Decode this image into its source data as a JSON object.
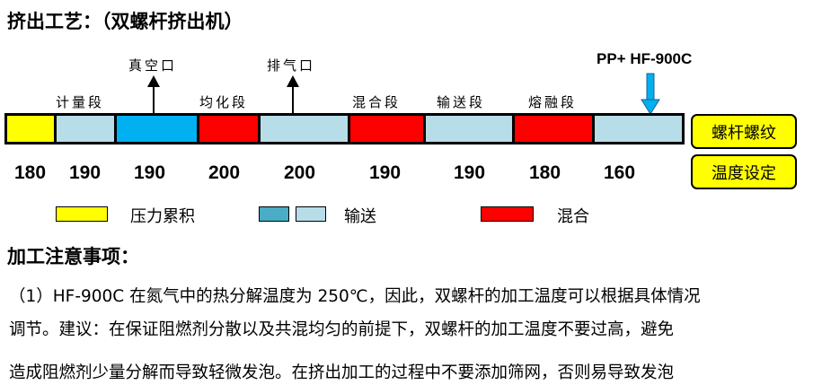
{
  "title": "挤出工艺：（双螺杆挤出机）",
  "zones": [
    {
      "label": "",
      "color": "#ffff00",
      "temp": "180"
    },
    {
      "label": "计量段",
      "color": "#b7dde8",
      "temp": "190"
    },
    {
      "label": "",
      "color": "#00b0f0",
      "temp": "190"
    },
    {
      "label": "均化段",
      "color": "#ff0000",
      "temp": "200"
    },
    {
      "label": "",
      "color": "#b7dde8",
      "temp": "200"
    },
    {
      "label": "混合段",
      "color": "#ff0000",
      "temp": "190"
    },
    {
      "label": "输送段",
      "color": "#b7dde8",
      "temp": "190"
    },
    {
      "label": "熔融段",
      "color": "#ff0000",
      "temp": "180"
    },
    {
      "label": "",
      "color": "#b7dde8",
      "temp": "160"
    }
  ],
  "ports": {
    "vacuum": "真空口",
    "vent": "排气口",
    "feed": "PP+ HF-900C"
  },
  "side_boxes": {
    "screw": "螺杆螺纹",
    "temp": "温度设定"
  },
  "legend": {
    "pressure": "压力累积",
    "convey": "输送",
    "mix": "混合"
  },
  "notes_title": "加工注意事项：",
  "notes": [
    "（1）HF-900C 在氮气中的热分解温度为 250℃，因此，双螺杆的加工温度可以根据具体情况",
    "调节。建议：在保证阻燃剂分散以及共混均匀的前提下，双螺杆的加工温度不要过高，避免",
    "造成阻燃剂少量分解而导致轻微发泡。在挤出加工的过程中不要添加筛网，否则易导致发泡"
  ]
}
